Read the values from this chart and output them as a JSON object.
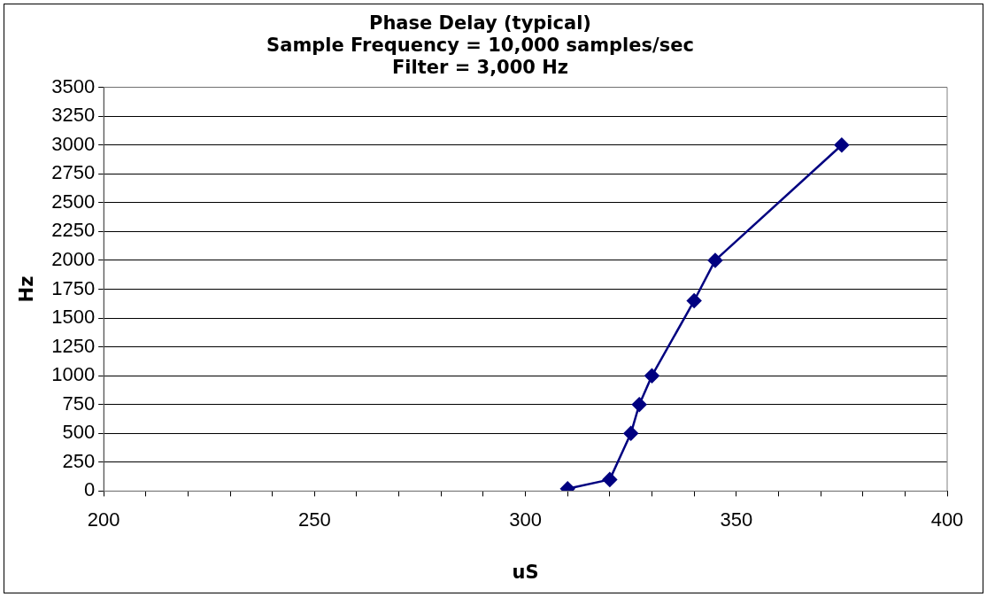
{
  "chart_data": {
    "type": "line",
    "title": "Phase Delay (typical)\nSample Frequency = 10,000 samples/sec\nFilter = 3,000 Hz",
    "xlabel": "uS",
    "ylabel": "Hz",
    "x": [
      310,
      320,
      325,
      327,
      330,
      340,
      345,
      375
    ],
    "series": [
      {
        "color": "#000080",
        "values": [
          20,
          100,
          500,
          750,
          1000,
          1650,
          2000,
          3000
        ]
      }
    ],
    "xlim": [
      200,
      400
    ],
    "xticks": [
      200,
      {
        "value": 210,
        "label": null
      },
      {
        "value": 220,
        "label": null
      },
      {
        "value": 230,
        "label": null
      },
      {
        "value": 240,
        "label": null
      },
      250,
      {
        "value": 260,
        "label": null
      },
      {
        "value": 270,
        "label": null
      },
      {
        "value": 280,
        "label": null
      },
      {
        "value": 290,
        "label": null
      },
      300,
      {
        "value": 310,
        "label": null
      },
      {
        "value": 320,
        "label": null
      },
      {
        "value": 330,
        "label": null
      },
      {
        "value": 340,
        "label": null
      },
      350,
      {
        "value": 360,
        "label": null
      },
      {
        "value": 370,
        "label": null
      },
      {
        "value": 380,
        "label": null
      },
      {
        "value": 390,
        "label": null
      },
      400
    ],
    "ylim": [
      0,
      3500
    ],
    "yticks": [
      0,
      250,
      500,
      750,
      1000,
      1250,
      1500,
      1750,
      2000,
      2250,
      2500,
      2750,
      3000,
      3250,
      3500
    ],
    "grid": "y",
    "legend": false,
    "marker": "diamond",
    "line_style": "solid"
  }
}
